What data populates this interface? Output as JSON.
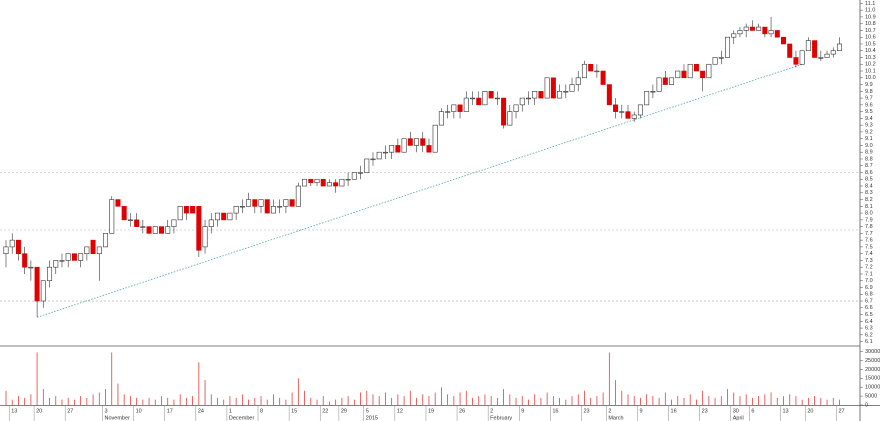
{
  "chart_data": {
    "type": "candlestick",
    "up_color": "#ffffff",
    "down_color": "#e00000",
    "outline_color": "#333333",
    "volume_color": "#e04040",
    "trendline": {
      "x": [
        5,
        128
      ],
      "y": [
        6.46,
        10.2
      ],
      "color": "#4aa8a0"
    },
    "hlines": [
      8.6,
      7.75,
      6.7
    ],
    "categories": [
      null,
      "13",
      null,
      null,
      null,
      "20",
      null,
      null,
      null,
      null,
      "27",
      null,
      null,
      null,
      null,
      null,
      "3",
      null,
      null,
      null,
      null,
      "10",
      null,
      null,
      null,
      null,
      "17",
      null,
      null,
      null,
      null,
      "24",
      null,
      null,
      null,
      null,
      "1",
      null,
      null,
      null,
      null,
      "8",
      null,
      null,
      null,
      null,
      "15",
      null,
      null,
      null,
      null,
      "22",
      null,
      null,
      "29",
      null,
      null,
      null,
      "5",
      null,
      null,
      null,
      null,
      "12",
      null,
      null,
      null,
      null,
      "19",
      null,
      null,
      null,
      null,
      "26",
      null,
      null,
      null,
      null,
      "2",
      null,
      null,
      null,
      null,
      "9",
      null,
      null,
      null,
      null,
      "16",
      null,
      null,
      null,
      null,
      "23",
      null,
      null,
      null,
      "2",
      null,
      null,
      null,
      null,
      "9",
      null,
      null,
      null,
      null,
      "16",
      null,
      null,
      null,
      null,
      "23",
      null,
      null,
      null,
      null,
      "30",
      null,
      null,
      "6",
      null,
      null,
      null,
      null,
      "13",
      null,
      null,
      null,
      "20",
      null,
      null,
      null,
      null,
      "27"
    ],
    "months": [
      null,
      null,
      null,
      null,
      null,
      null,
      null,
      null,
      null,
      null,
      null,
      null,
      null,
      null,
      null,
      null,
      "November",
      null,
      null,
      null,
      null,
      null,
      null,
      null,
      null,
      null,
      null,
      null,
      null,
      null,
      null,
      null,
      null,
      null,
      null,
      null,
      "December",
      null,
      null,
      null,
      null,
      null,
      null,
      null,
      null,
      null,
      null,
      null,
      null,
      null,
      null,
      null,
      null,
      null,
      null,
      null,
      null,
      null,
      "2015",
      null,
      null,
      null,
      null,
      null,
      null,
      null,
      null,
      null,
      null,
      null,
      null,
      null,
      null,
      null,
      null,
      null,
      null,
      null,
      "February",
      null,
      null,
      null,
      null,
      null,
      null,
      null,
      null,
      null,
      null,
      null,
      null,
      null,
      null,
      null,
      null,
      null,
      null,
      "March",
      null,
      null,
      null,
      null,
      null,
      null,
      null,
      null,
      null,
      null,
      null,
      null,
      null,
      null,
      null,
      null,
      null,
      null,
      null,
      "April",
      null,
      null,
      null,
      null,
      null,
      null,
      null,
      null,
      null,
      null,
      null,
      null,
      null,
      null,
      null,
      null,
      null
    ],
    "open": [
      7.4,
      7.5,
      7.6,
      7.4,
      7.2,
      7.2,
      6.7,
      7.0,
      7.2,
      7.3,
      7.3,
      7.4,
      7.3,
      7.4,
      7.6,
      7.4,
      7.5,
      7.7,
      8.2,
      8.1,
      7.9,
      7.9,
      7.8,
      7.8,
      7.7,
      7.8,
      7.7,
      7.8,
      7.9,
      8.1,
      8.1,
      8.1,
      7.5,
      7.8,
      7.9,
      8.0,
      7.9,
      8.0,
      8.1,
      8.1,
      8.2,
      8.1,
      8.2,
      8.0,
      8.1,
      8.1,
      8.2,
      8.1,
      8.4,
      8.5,
      8.45,
      8.5,
      8.4,
      8.45,
      8.4,
      8.5,
      8.5,
      8.6,
      8.6,
      8.8,
      8.8,
      8.9,
      8.9,
      9.0,
      8.9,
      9.1,
      9.0,
      9.1,
      9.0,
      8.9,
      9.3,
      9.5,
      9.5,
      9.6,
      9.5,
      9.7,
      9.7,
      9.6,
      9.8,
      9.7,
      9.7,
      9.3,
      9.5,
      9.6,
      9.7,
      9.7,
      9.8,
      9.7,
      10.0,
      9.7,
      9.8,
      9.8,
      9.9,
      10.0,
      10.2,
      10.1,
      10.1,
      9.9,
      9.6,
      9.5,
      9.5,
      9.4,
      9.45,
      9.6,
      9.8,
      9.8,
      10.0,
      9.9,
      10.0,
      10.1,
      10.0,
      10.2,
      10.1,
      10.0,
      10.2,
      10.3,
      10.3,
      10.6,
      10.65,
      10.7,
      10.75,
      10.7,
      10.75,
      10.65,
      10.7,
      10.6,
      10.5,
      10.3,
      10.2,
      10.4,
      10.55,
      10.3,
      10.3,
      10.35,
      10.4
    ],
    "high": [
      7.6,
      7.7,
      7.6,
      7.5,
      7.3,
      7.2,
      7.0,
      7.3,
      7.3,
      7.4,
      7.4,
      7.4,
      7.4,
      7.5,
      7.6,
      7.5,
      7.7,
      8.25,
      8.2,
      8.1,
      8.0,
      8.0,
      7.9,
      7.8,
      7.8,
      7.8,
      7.9,
      7.9,
      8.1,
      8.1,
      8.1,
      8.1,
      7.9,
      8.0,
      8.0,
      8.0,
      8.0,
      8.1,
      8.2,
      8.3,
      8.2,
      8.2,
      8.2,
      8.2,
      8.2,
      8.2,
      8.2,
      8.45,
      8.5,
      8.5,
      8.5,
      8.5,
      8.5,
      8.5,
      8.5,
      8.6,
      8.6,
      8.7,
      8.8,
      8.9,
      8.9,
      9.0,
      9.0,
      9.1,
      9.1,
      9.2,
      9.1,
      9.2,
      9.1,
      9.3,
      9.55,
      9.6,
      9.6,
      9.6,
      9.8,
      9.8,
      9.8,
      9.8,
      9.8,
      9.8,
      9.7,
      9.6,
      9.6,
      9.7,
      9.8,
      9.8,
      9.8,
      10.0,
      10.0,
      9.9,
      9.9,
      10.0,
      10.1,
      10.25,
      10.2,
      10.2,
      10.1,
      9.9,
      9.7,
      9.6,
      9.6,
      9.5,
      9.6,
      9.8,
      9.9,
      10.0,
      10.1,
      10.0,
      10.1,
      10.2,
      10.2,
      10.2,
      10.1,
      10.2,
      10.3,
      10.4,
      10.6,
      10.7,
      10.75,
      10.8,
      10.85,
      10.8,
      10.75,
      10.9,
      10.7,
      10.6,
      10.5,
      10.4,
      10.4,
      10.6,
      10.55,
      10.4,
      10.4,
      10.45,
      10.6
    ],
    "low": [
      7.2,
      7.4,
      7.3,
      7.1,
      7.0,
      6.46,
      6.6,
      6.9,
      7.1,
      7.2,
      7.2,
      7.3,
      7.2,
      7.3,
      7.4,
      7.0,
      7.5,
      7.7,
      8.1,
      7.9,
      7.8,
      7.8,
      7.7,
      7.7,
      7.7,
      7.7,
      7.7,
      7.7,
      7.9,
      7.9,
      8.0,
      7.35,
      7.4,
      7.7,
      7.8,
      7.9,
      7.9,
      7.9,
      8.0,
      8.1,
      8.0,
      8.0,
      8.0,
      8.0,
      8.0,
      8.0,
      8.1,
      8.1,
      8.4,
      8.4,
      8.4,
      8.4,
      8.4,
      8.3,
      8.4,
      8.4,
      8.5,
      8.5,
      8.6,
      8.7,
      8.8,
      8.8,
      8.8,
      8.9,
      8.9,
      9.0,
      8.9,
      8.9,
      8.9,
      8.9,
      9.3,
      9.4,
      9.4,
      9.4,
      9.5,
      9.6,
      9.6,
      9.6,
      9.7,
      9.6,
      9.25,
      9.3,
      9.4,
      9.5,
      9.6,
      9.6,
      9.7,
      9.7,
      9.7,
      9.7,
      9.7,
      9.8,
      9.8,
      10.0,
      10.1,
      10.0,
      9.9,
      9.6,
      9.4,
      9.4,
      9.4,
      9.35,
      9.4,
      9.6,
      9.7,
      9.8,
      9.9,
      9.9,
      10.0,
      10.0,
      10.0,
      10.1,
      9.8,
      10.0,
      10.2,
      10.2,
      10.3,
      10.5,
      10.6,
      10.6,
      10.7,
      10.7,
      10.6,
      10.6,
      10.6,
      10.5,
      10.3,
      10.15,
      10.2,
      10.4,
      10.3,
      10.25,
      10.3,
      10.3,
      10.4
    ],
    "close": [
      7.5,
      7.6,
      7.4,
      7.2,
      7.2,
      6.7,
      7.0,
      7.2,
      7.3,
      7.3,
      7.4,
      7.3,
      7.4,
      7.5,
      7.4,
      7.5,
      7.7,
      8.2,
      8.1,
      7.9,
      7.9,
      7.8,
      7.8,
      7.7,
      7.8,
      7.7,
      7.8,
      7.9,
      8.1,
      8.0,
      8.0,
      7.45,
      7.8,
      7.9,
      8.0,
      7.9,
      8.0,
      8.1,
      8.1,
      8.2,
      8.1,
      8.2,
      8.0,
      8.1,
      8.1,
      8.2,
      8.1,
      8.4,
      8.5,
      8.45,
      8.5,
      8.4,
      8.45,
      8.4,
      8.5,
      8.5,
      8.6,
      8.6,
      8.8,
      8.8,
      8.9,
      8.9,
      9.0,
      8.9,
      9.1,
      9.0,
      9.1,
      9.0,
      8.9,
      9.3,
      9.5,
      9.5,
      9.6,
      9.5,
      9.7,
      9.7,
      9.6,
      9.8,
      9.7,
      9.7,
      9.3,
      9.5,
      9.6,
      9.7,
      9.7,
      9.8,
      9.7,
      10.0,
      9.7,
      9.8,
      9.8,
      9.9,
      10.0,
      10.2,
      10.1,
      10.1,
      9.9,
      9.6,
      9.5,
      9.5,
      9.4,
      9.45,
      9.6,
      9.8,
      9.8,
      10.0,
      9.9,
      10.0,
      10.1,
      10.0,
      10.2,
      10.1,
      10.0,
      10.2,
      10.3,
      10.3,
      10.6,
      10.65,
      10.7,
      10.75,
      10.7,
      10.75,
      10.65,
      10.7,
      10.6,
      10.5,
      10.3,
      10.2,
      10.4,
      10.55,
      10.3,
      10.3,
      10.35,
      10.4,
      10.5
    ],
    "volume": [
      8000,
      3000,
      5000,
      4000,
      6000,
      29500,
      9000,
      4000,
      5000,
      3000,
      4000,
      3000,
      5000,
      4000,
      6000,
      7000,
      9000,
      29500,
      12000,
      6000,
      5000,
      4000,
      3000,
      4000,
      3000,
      5000,
      4000,
      3000,
      6000,
      4000,
      5000,
      24000,
      14000,
      6000,
      4000,
      3000,
      5000,
      4000,
      6000,
      3000,
      4000,
      5000,
      3000,
      6000,
      4000,
      3000,
      7000,
      15000,
      8000,
      4000,
      3000,
      5000,
      2000,
      3000,
      4000,
      5000,
      3000,
      7000,
      8000,
      6000,
      5000,
      7000,
      4000,
      6000,
      5000,
      8000,
      4000,
      6000,
      5000,
      7000,
      10000,
      6000,
      5000,
      7000,
      8000,
      4000,
      5000,
      6000,
      5000,
      4000,
      9000,
      6000,
      4000,
      5000,
      3000,
      6000,
      4000,
      7000,
      5000,
      4000,
      3000,
      5000,
      6000,
      8000,
      4000,
      5000,
      7000,
      29500,
      14000,
      8000,
      6000,
      5000,
      4000,
      6000,
      5000,
      4000,
      7000,
      3000,
      5000,
      4000,
      6000,
      3000,
      8000,
      5000,
      4000,
      5000,
      9000,
      7000,
      5000,
      6000,
      4000,
      5000,
      6000,
      7000,
      4000,
      5000,
      6000,
      5000,
      3000,
      4000,
      5000,
      4000,
      3000,
      4000,
      3000
    ],
    "ylim": [
      6.05,
      11.15
    ],
    "yticks": [
      6.1,
      6.2,
      6.3,
      6.4,
      6.5,
      6.6,
      6.7,
      6.8,
      6.9,
      {
        "value": 7,
        "label": "7.0"
      },
      7.1,
      7.2,
      7.3,
      7.4,
      7.5,
      7.6,
      7.7,
      7.8,
      7.9,
      {
        "value": 8,
        "label": "8.0"
      },
      8.1,
      8.2,
      8.3,
      8.4,
      8.5,
      8.6,
      8.7,
      8.8,
      8.9,
      {
        "value": 9,
        "label": "9.0"
      },
      9.1,
      9.2,
      9.3,
      9.4,
      9.5,
      9.6,
      9.7,
      9.8,
      9.9,
      {
        "value": 10,
        "label": "10.0"
      },
      10.1,
      10.2,
      10.3,
      10.4,
      10.5,
      10.6,
      10.7,
      10.8,
      10.9,
      {
        "value": 11,
        "label": "11.0"
      },
      11.1
    ],
    "vlim": [
      0,
      32000
    ],
    "vticks": [
      0,
      5000,
      10000,
      15000,
      20000,
      25000,
      30000
    ]
  }
}
